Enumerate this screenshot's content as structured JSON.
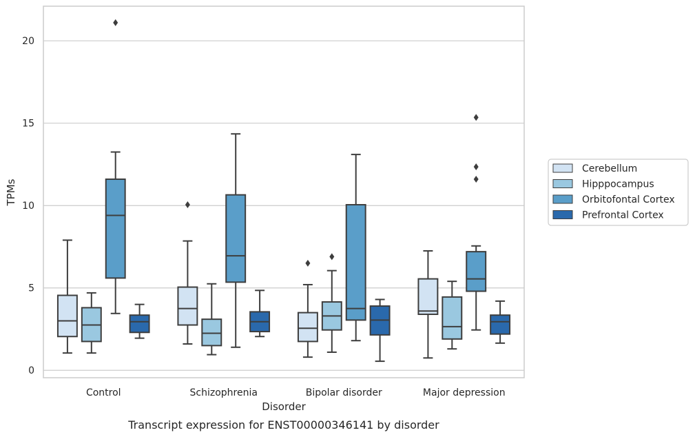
{
  "chart_data": {
    "type": "box",
    "caption": "Transcript expression for ENST00000346141 by disorder",
    "xlabel": "Disorder",
    "ylabel": "TPMs",
    "ylim": [
      -0.45,
      22.1
    ],
    "yticks": [
      0,
      5,
      10,
      15,
      20
    ],
    "grid": true,
    "legend_position": "right",
    "categories": [
      "Control",
      "Schizophrenia",
      "Bipolar disorder",
      "Major depression"
    ],
    "series": [
      {
        "name": "Cerebellum",
        "color": "#d2e3f3",
        "boxes": [
          {
            "whislo": 1.05,
            "q1": 2.05,
            "med": 3.0,
            "q3": 4.55,
            "whishi": 7.9,
            "fliers": []
          },
          {
            "whislo": 1.6,
            "q1": 2.75,
            "med": 3.75,
            "q3": 5.05,
            "whishi": 7.85,
            "fliers": [
              10.05
            ]
          },
          {
            "whislo": 0.8,
            "q1": 1.75,
            "med": 2.55,
            "q3": 3.5,
            "whishi": 5.2,
            "fliers": [
              6.5
            ]
          },
          {
            "whislo": 0.75,
            "q1": 3.4,
            "med": 3.6,
            "q3": 5.55,
            "whishi": 7.25,
            "fliers": []
          }
        ]
      },
      {
        "name": "Hipppocampus",
        "color": "#9ac8e0",
        "boxes": [
          {
            "whislo": 1.05,
            "q1": 1.75,
            "med": 2.75,
            "q3": 3.8,
            "whishi": 4.7,
            "fliers": []
          },
          {
            "whislo": 0.95,
            "q1": 1.5,
            "med": 2.25,
            "q3": 3.1,
            "whishi": 5.25,
            "fliers": []
          },
          {
            "whislo": 1.1,
            "q1": 2.45,
            "med": 3.3,
            "q3": 4.15,
            "whishi": 6.05,
            "fliers": [
              6.9
            ]
          },
          {
            "whislo": 1.3,
            "q1": 1.9,
            "med": 2.65,
            "q3": 4.45,
            "whishi": 5.4,
            "fliers": []
          }
        ]
      },
      {
        "name": "Orbitofontal Cortex",
        "color": "#5a9ec9",
        "boxes": [
          {
            "whislo": 3.45,
            "q1": 5.6,
            "med": 9.4,
            "q3": 11.6,
            "whishi": 13.25,
            "fliers": [
              21.1
            ]
          },
          {
            "whislo": 1.4,
            "q1": 5.35,
            "med": 6.95,
            "q3": 10.65,
            "whishi": 14.35,
            "fliers": []
          },
          {
            "whislo": 1.8,
            "q1": 3.05,
            "med": 3.75,
            "q3": 10.05,
            "whishi": 13.1,
            "fliers": []
          },
          {
            "whislo": 2.45,
            "q1": 4.8,
            "med": 5.55,
            "q3": 7.2,
            "whishi": 7.55,
            "fliers": [
              15.35,
              12.35,
              11.6
            ]
          }
        ]
      },
      {
        "name": "Prefrontal Cortex",
        "color": "#2a69ac",
        "boxes": [
          {
            "whislo": 1.95,
            "q1": 2.3,
            "med": 2.95,
            "q3": 3.35,
            "whishi": 4.0,
            "fliers": []
          },
          {
            "whislo": 2.05,
            "q1": 2.35,
            "med": 2.95,
            "q3": 3.55,
            "whishi": 4.85,
            "fliers": []
          },
          {
            "whislo": 0.55,
            "q1": 2.15,
            "med": 3.05,
            "q3": 3.9,
            "whishi": 4.3,
            "fliers": []
          },
          {
            "whislo": 1.65,
            "q1": 2.2,
            "med": 2.95,
            "q3": 3.35,
            "whishi": 4.2,
            "fliers": []
          }
        ]
      }
    ]
  }
}
